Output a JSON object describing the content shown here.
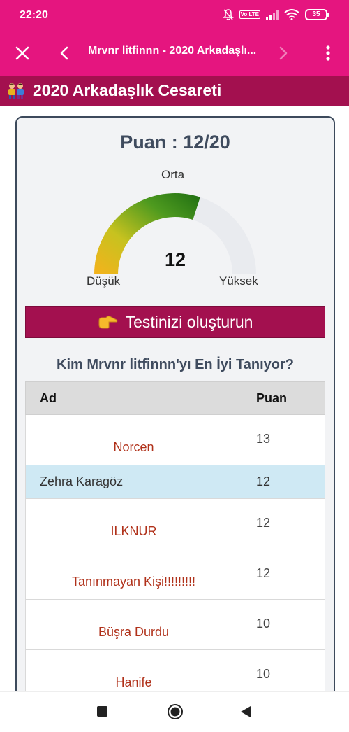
{
  "status_bar": {
    "time": "22:20",
    "volte": "Vo LTE",
    "battery": "35"
  },
  "app_bar": {
    "title": "Mrvnr litfinnn - 2020 Arkadaşlı..."
  },
  "page_header": {
    "title": "2020 Arkadaşlık Cesareti"
  },
  "score": {
    "title": "Puan : 12/20",
    "value": "12",
    "max": 20,
    "gauge_labels": {
      "low": "Düşük",
      "mid": "Orta",
      "high": "Yüksek"
    }
  },
  "create_button": {
    "label": "Testinizi oluşturun"
  },
  "leaderboard": {
    "title": "Kim Mrvnr litfinnn'yı En İyi Tanıyor?",
    "headers": {
      "name": "Ad",
      "score": "Puan"
    },
    "rows": [
      {
        "name": "Norcen",
        "score": "13"
      },
      {
        "name": "Zehra Karagöz",
        "score": "12"
      },
      {
        "name": "ILKNUR",
        "score": "12"
      },
      {
        "name": "Tanınmayan Kişi!!!!!!!!!",
        "score": "12"
      },
      {
        "name": "Büşra Durdu",
        "score": "10"
      },
      {
        "name": "Hanife",
        "score": "10"
      }
    ]
  },
  "icons": {
    "close": "close-icon",
    "back": "back-icon",
    "forward": "forward-icon",
    "more": "more-icon",
    "friends": "friends-icon",
    "pointing_hand": "pointing-hand-icon"
  },
  "colors": {
    "app_bar": "#e5157f",
    "header": "#a3104f",
    "button": "#a3104f",
    "highlight_row": "#cfe9f4"
  }
}
